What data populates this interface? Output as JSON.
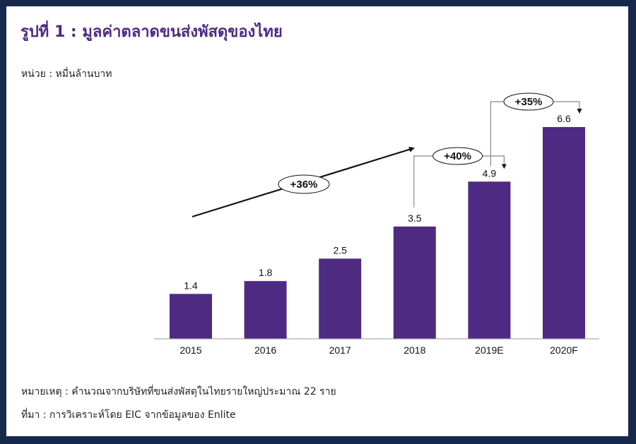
{
  "title": "รูปที่ 1 : มูลค่าตลาดขนส่งพัสดุของไทย",
  "unit_label": "หน่วย : หมื่นล้านบาท",
  "note": "หมายเหตุ : คำนวณจากบริษัทที่ขนส่งพัสดุในไทยรายใหญ่ประมาณ 22 ราย",
  "source": "ที่มา : การวิเคราะห์โดย EIC จากข้อมูลของ Enlite",
  "colors": {
    "bar": "#4f2a82",
    "frame": "#16294a"
  },
  "chart_data": {
    "type": "bar",
    "categories": [
      "2015",
      "2016",
      "2017",
      "2018",
      "2019E",
      "2020F"
    ],
    "values": [
      1.4,
      1.8,
      2.5,
      3.5,
      4.9,
      6.6
    ],
    "value_labels": [
      "1.4",
      "1.8",
      "2.5",
      "3.5",
      "4.9",
      "6.6"
    ],
    "ylim": [
      0,
      6.6
    ],
    "grid": false,
    "annotations": [
      {
        "label": "+36%",
        "type": "trend-arrow",
        "from": "2015",
        "to": "2018"
      },
      {
        "label": "+40%",
        "type": "bracket",
        "from": "2018",
        "to": "2019E"
      },
      {
        "label": "+35%",
        "type": "bracket",
        "from": "2019E",
        "to": "2020F"
      }
    ]
  }
}
